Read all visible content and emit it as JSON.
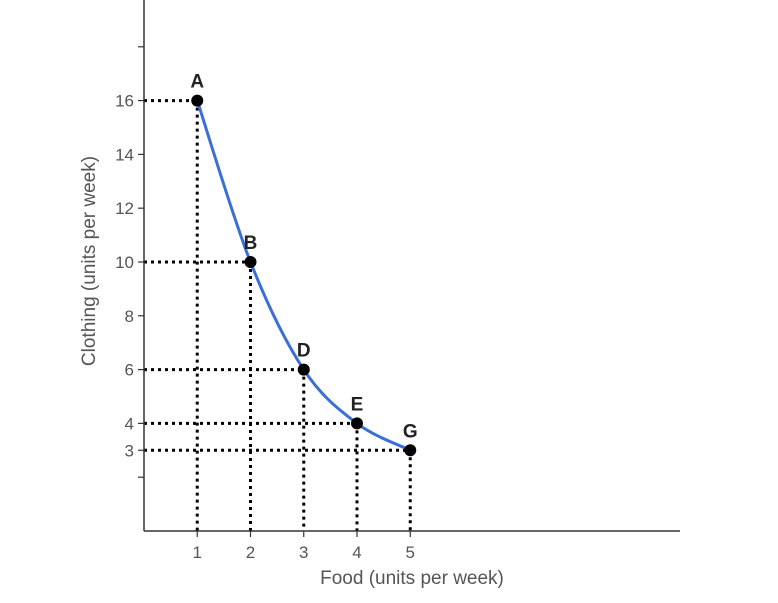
{
  "chart_data": {
    "type": "line",
    "xlabel": "Food (units per week)",
    "ylabel": "Clothing (units per week)",
    "x_ticks": [
      "1",
      "2",
      "3",
      "4",
      "5"
    ],
    "y_ticks": [
      "3",
      "4",
      "6",
      "8",
      "10",
      "12",
      "14",
      "16"
    ],
    "xlim": [
      0,
      9.2
    ],
    "ylim": [
      0,
      18
    ],
    "grid": false,
    "legend": "none",
    "series": [
      {
        "points": [
          {
            "label": "A",
            "x": 1,
            "y": 16
          },
          {
            "label": "B",
            "x": 2,
            "y": 10
          },
          {
            "label": "D",
            "x": 3,
            "y": 6
          },
          {
            "label": "E",
            "x": 4,
            "y": 4
          },
          {
            "label": "G",
            "x": 5,
            "y": 3
          }
        ]
      }
    ],
    "colors": {
      "curve": "#3a6fd8",
      "points": "#000000",
      "guides": "#000000",
      "axes": "#333333"
    }
  }
}
